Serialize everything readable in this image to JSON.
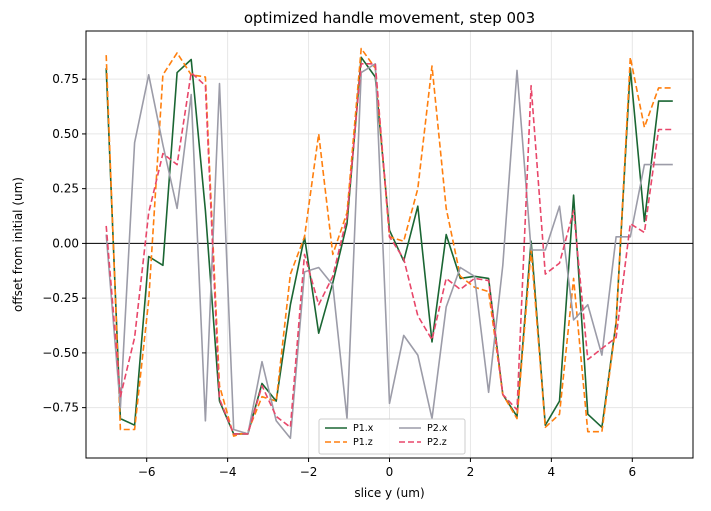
{
  "chart_data": {
    "type": "line",
    "title": "optimized handle movement, step 003",
    "xlabel": "slice y (um)",
    "ylabel": "offset from initial (um)",
    "xlim": [
      -7.5,
      7.5
    ],
    "ylim": [
      -0.98,
      0.97
    ],
    "xticks": [
      -6,
      -4,
      -2,
      0,
      2,
      4,
      6
    ],
    "xtick_labels": [
      "−6",
      "−4",
      "−2",
      "0",
      "2",
      "4",
      "6"
    ],
    "yticks": [
      -0.75,
      -0.5,
      -0.25,
      0.0,
      0.25,
      0.5,
      0.75
    ],
    "ytick_labels": [
      "−0.75",
      "−0.50",
      "−0.25",
      "0.00",
      "0.25",
      "0.50",
      "0.75"
    ],
    "grid": true,
    "zero_line": true,
    "legend_position": "bottom-center",
    "legend_columns": 2,
    "x": [
      -7.0,
      -6.65,
      -6.3,
      -5.95,
      -5.6,
      -5.25,
      -4.9,
      -4.55,
      -4.2,
      -3.85,
      -3.5,
      -3.15,
      -2.8,
      -2.45,
      -2.1,
      -1.75,
      -1.4,
      -1.05,
      -0.7,
      -0.35,
      0.0,
      0.35,
      0.7,
      1.05,
      1.4,
      1.75,
      2.1,
      2.45,
      2.8,
      3.15,
      3.5,
      3.85,
      4.2,
      4.55,
      4.9,
      5.25,
      5.6,
      5.95,
      6.3,
      6.65,
      7.0
    ],
    "series": [
      {
        "name": "P1.x",
        "color": "#1a6633",
        "dash": "solid",
        "values": [
          0.8,
          -0.8,
          -0.83,
          -0.06,
          -0.1,
          0.78,
          0.84,
          0.15,
          -0.72,
          -0.87,
          -0.87,
          -0.64,
          -0.72,
          -0.28,
          0.03,
          -0.41,
          -0.18,
          0.09,
          0.85,
          0.76,
          0.06,
          -0.08,
          0.17,
          -0.45,
          0.04,
          -0.16,
          -0.15,
          -0.16,
          -0.69,
          -0.79,
          0.01,
          -0.83,
          -0.72,
          0.22,
          -0.78,
          -0.84,
          -0.36,
          0.8,
          0.1,
          0.65,
          0.65
        ]
      },
      {
        "name": "P1.z",
        "color": "#ff7f0e",
        "dash": "dashed",
        "values": [
          0.86,
          -0.85,
          -0.85,
          -0.26,
          0.77,
          0.87,
          0.77,
          0.76,
          -0.65,
          -0.88,
          -0.86,
          -0.7,
          -0.72,
          -0.14,
          0.03,
          0.5,
          -0.05,
          0.14,
          0.89,
          0.8,
          0.03,
          0.01,
          0.25,
          0.81,
          0.16,
          -0.15,
          -0.2,
          -0.22,
          -0.69,
          -0.8,
          -0.03,
          -0.84,
          -0.78,
          -0.16,
          -0.86,
          -0.86,
          -0.37,
          0.85,
          0.53,
          0.71,
          0.71
        ]
      },
      {
        "name": "P2.x",
        "color": "#9c9ca8",
        "dash": "solid",
        "values": [
          0.04,
          -0.75,
          0.46,
          0.77,
          0.45,
          0.16,
          0.68,
          -0.81,
          0.73,
          -0.85,
          -0.87,
          -0.54,
          -0.81,
          -0.89,
          -0.13,
          -0.11,
          -0.19,
          -0.8,
          0.78,
          0.82,
          -0.73,
          -0.42,
          -0.51,
          -0.8,
          -0.29,
          -0.11,
          -0.15,
          -0.68,
          -0.1,
          0.79,
          -0.03,
          -0.03,
          0.17,
          -0.35,
          -0.28,
          -0.51,
          0.03,
          0.03,
          0.36,
          0.36,
          0.36
        ]
      },
      {
        "name": "P2.z",
        "color": "#e8476a",
        "dash": "dashed",
        "values": [
          0.08,
          -0.7,
          -0.43,
          0.14,
          0.41,
          0.36,
          0.78,
          0.72,
          -0.71,
          -0.87,
          -0.87,
          -0.65,
          -0.79,
          -0.84,
          -0.05,
          -0.28,
          -0.15,
          0.12,
          0.82,
          0.82,
          0.03,
          -0.07,
          -0.33,
          -0.44,
          -0.16,
          -0.21,
          -0.16,
          -0.17,
          -0.69,
          -0.76,
          0.72,
          -0.14,
          -0.09,
          0.15,
          -0.53,
          -0.48,
          -0.43,
          0.09,
          0.05,
          0.52,
          0.52
        ]
      }
    ]
  }
}
